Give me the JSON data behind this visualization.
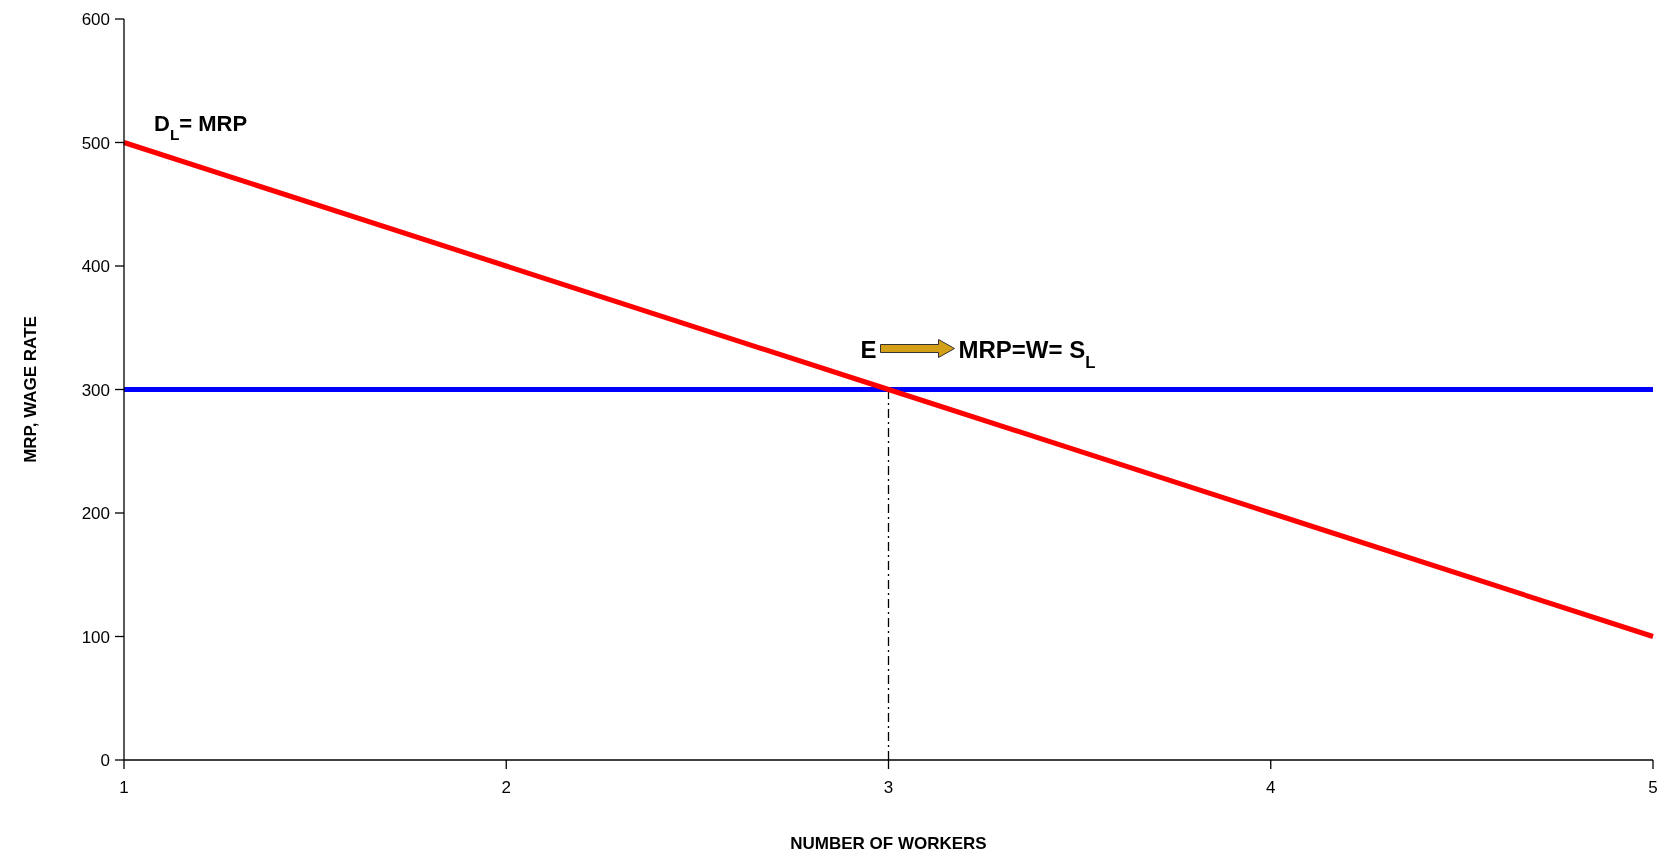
{
  "chart_data": {
    "type": "line",
    "xlabel": "NUMBER OF WORKERS",
    "ylabel": "MRP, WAGE RATE",
    "x": [
      1,
      2,
      3,
      4,
      5
    ],
    "series": [
      {
        "name": "D$_{L}$= MRP",
        "color": "#ff0000",
        "values": [
          500,
          400,
          300,
          200,
          100
        ]
      },
      {
        "color": "#0000ff",
        "values": [
          300,
          300,
          300,
          300,
          300
        ]
      }
    ],
    "xlim": [
      1,
      5
    ],
    "xticks": [
      1,
      2,
      3,
      4,
      5
    ],
    "ylim": [
      0,
      600
    ],
    "yticks": [
      0,
      100,
      200,
      300,
      400,
      500,
      600
    ],
    "ref_lines": [
      {
        "axis": "x",
        "value": 3,
        "color": "#000000",
        "line_style": "dashed"
      }
    ],
    "annotations": [
      {
        "text": "E",
        "x": 3,
        "y": 300
      },
      "MRP=W= S$_{L}$"
    ],
    "grid": false,
    "marker": "none",
    "line_style": "solid"
  }
}
